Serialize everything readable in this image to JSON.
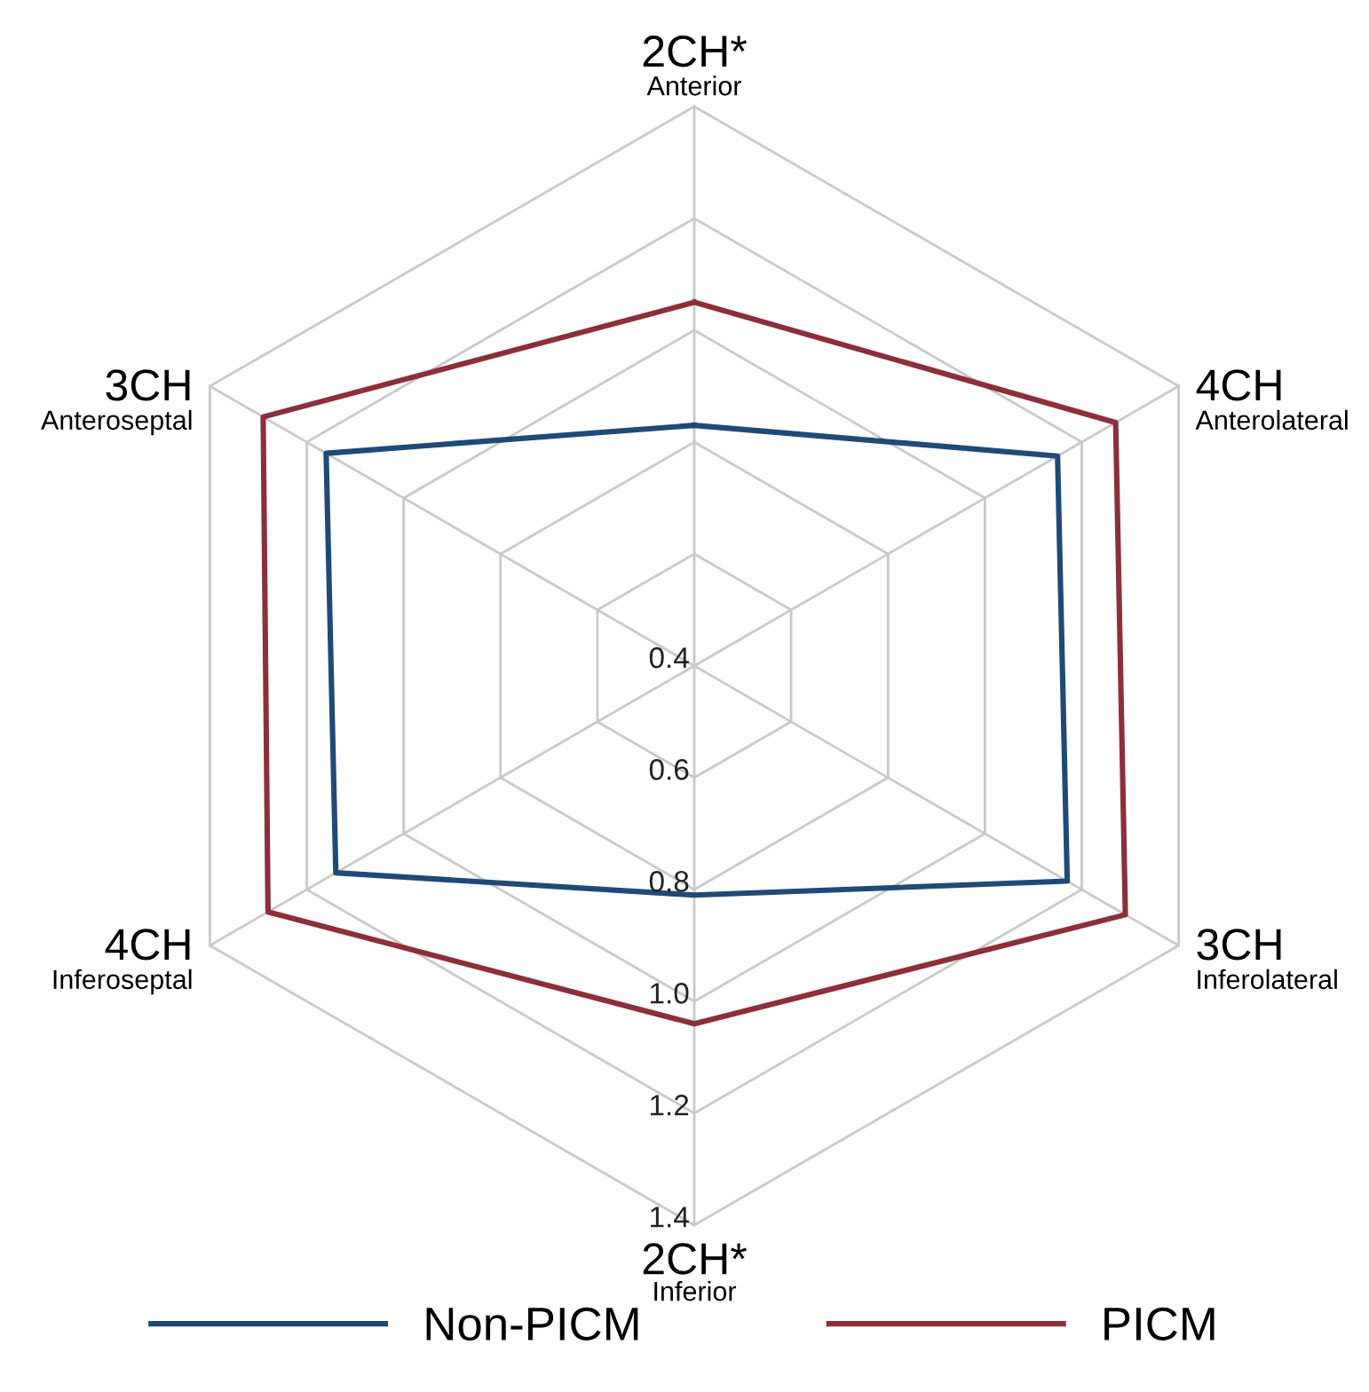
{
  "chart_data": {
    "type": "radar",
    "categories": [
      "2CH*\nAnterior",
      "4CH\nAnterolateral",
      "3CH\nInferolateral",
      "2CH*\nInferior",
      "4CH\nInferoseptal",
      "3CH\nAnteroseptal"
    ],
    "series": [
      {
        "name": "Non-PICM",
        "color": "#1f4a78",
        "values": [
          0.83,
          1.15,
          1.17,
          0.81,
          1.14,
          1.16
        ]
      },
      {
        "name": "PICM",
        "color": "#8c2f3b",
        "values": [
          1.05,
          1.27,
          1.29,
          1.04,
          1.28,
          1.29
        ]
      }
    ],
    "ylim": [
      0.4,
      1.4
    ],
    "yticks": [
      0.4,
      0.6,
      0.8,
      {
        "value": 1,
        "label": "1.0"
      },
      1.2,
      1.4
    ],
    "grid": true,
    "legend": "bottom"
  }
}
